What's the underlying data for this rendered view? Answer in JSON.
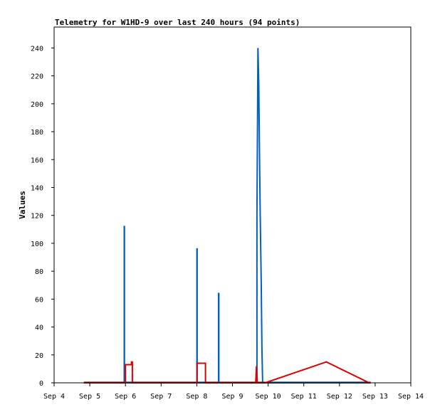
{
  "chart_data": {
    "type": "line",
    "title": "Telemetry for W1HD-9 over last 240 hours (94 points)",
    "xlabel": "",
    "ylabel": "Values",
    "xlim": [
      "2000-09-04",
      "2000-09-14"
    ],
    "ylim": [
      0,
      255
    ],
    "x_ticks": [
      "Sep 4",
      "Sep 5",
      "Sep 6",
      "Sep 7",
      "Sep 8",
      "Sep 9",
      "Sep 10",
      "Sep 11",
      "Sep 12",
      "Sep 13",
      "Sep 14"
    ],
    "y_ticks": [
      0,
      20,
      40,
      60,
      80,
      100,
      120,
      140,
      160,
      180,
      200,
      220,
      240
    ],
    "grid": false,
    "legend": "none",
    "series": [
      {
        "color": "#0060c0",
        "points": [
          [
            "2000-09-04 20:00",
            0
          ],
          [
            "2000-09-05 23:10",
            0
          ],
          [
            "2000-09-05 23:10",
            112
          ],
          [
            "2000-09-05 23:20",
            112
          ],
          [
            "2000-09-05 23:20",
            0
          ],
          [
            "2000-09-08 00:05",
            0
          ],
          [
            "2000-09-08 00:05",
            96
          ],
          [
            "2000-09-08 00:15",
            96
          ],
          [
            "2000-09-08 00:15",
            0
          ],
          [
            "2000-09-08 14:40",
            0
          ],
          [
            "2000-09-08 14:40",
            64
          ],
          [
            "2000-09-08 14:50",
            64
          ],
          [
            "2000-09-08 14:50",
            0
          ],
          [
            "2000-09-09 16:30",
            0
          ],
          [
            "2000-09-09 16:30",
            120
          ],
          [
            "2000-09-09 17:10",
            240
          ],
          [
            "2000-09-09 17:40",
            216
          ],
          [
            "2000-09-09 18:10",
            168
          ],
          [
            "2000-09-09 18:40",
            120
          ],
          [
            "2000-09-09 19:20",
            72
          ],
          [
            "2000-09-09 19:50",
            24
          ],
          [
            "2000-09-09 20:20",
            0
          ],
          [
            "2000-09-12 21:00",
            0
          ]
        ]
      },
      {
        "color": "#e00000",
        "points": [
          [
            "2000-09-04 20:00",
            0
          ],
          [
            "2000-09-06 00:00",
            0
          ],
          [
            "2000-09-06 00:00",
            13
          ],
          [
            "2000-09-06 04:00",
            13
          ],
          [
            "2000-09-06 04:00",
            15
          ],
          [
            "2000-09-06 04:40",
            15
          ],
          [
            "2000-09-06 04:40",
            0
          ],
          [
            "2000-09-08 00:10",
            0
          ],
          [
            "2000-09-08 00:10",
            14
          ],
          [
            "2000-09-08 05:50",
            14
          ],
          [
            "2000-09-08 05:50",
            0
          ],
          [
            "2000-09-09 15:40",
            0
          ],
          [
            "2000-09-09 16:10",
            12
          ],
          [
            "2000-09-09 16:40",
            0
          ],
          [
            "2000-09-09 22:00",
            0
          ],
          [
            "2000-09-11 15:10",
            15
          ],
          [
            "2000-09-12 20:00",
            0
          ],
          [
            "2000-09-12 21:00",
            0
          ]
        ]
      }
    ]
  }
}
